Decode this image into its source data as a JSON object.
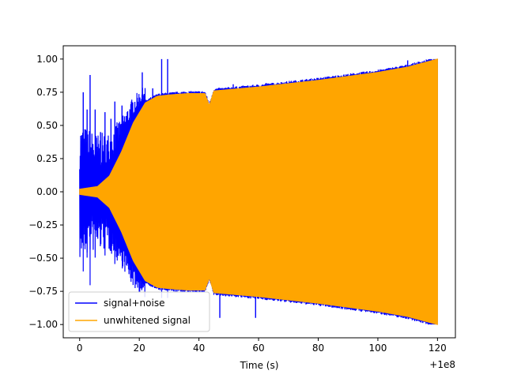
{
  "chart_data": {
    "type": "line",
    "title": "",
    "xlabel": "Time (s)",
    "ylabel": "",
    "x_offset_label": "+1e8",
    "xlim": [
      -5.5,
      126
    ],
    "ylim": [
      -1.1,
      1.1
    ],
    "x_ticks": [
      0,
      20,
      40,
      60,
      80,
      100,
      120
    ],
    "y_ticks": [
      -1.0,
      -0.75,
      -0.5,
      -0.25,
      0.0,
      0.25,
      0.5,
      0.75,
      1.0
    ],
    "x_tick_labels": [
      "0",
      "20",
      "40",
      "60",
      "80",
      "100",
      "120"
    ],
    "y_tick_labels": [
      "−1.00",
      "−0.75",
      "−0.50",
      "−0.25",
      "0.00",
      "0.25",
      "0.50",
      "0.75",
      "1.00"
    ],
    "grid": false,
    "legend_position": "lower-left",
    "series": [
      {
        "name": "signal+noise",
        "color": "#0000ff",
        "x_range": [
          0,
          120
        ],
        "description_points": {
          "spike_times": [
            1.2,
            2.5,
            3.5,
            5.2,
            7.0,
            8.5,
            10.5,
            11.8,
            14.2,
            15.5,
            21.0,
            24.5,
            27.5,
            29.5,
            47.0,
            51.5,
            59.0,
            62.5,
            66.5,
            87.0,
            110.0
          ],
          "spike_values": [
            0.75,
            0.62,
            0.88,
            0.62,
            0.45,
            0.6,
            0.55,
            0.68,
            0.65,
            0.45,
            0.9,
            0.78,
            1.0,
            1.0,
            -0.95,
            0.81,
            -0.95,
            0.82,
            0.77,
            -0.85,
            0.99
          ]
        }
      },
      {
        "name": "unwhitened signal",
        "color": "#ffa500",
        "x_range": [
          0,
          120
        ],
        "envelope": {
          "t": [
            0,
            6,
            10,
            14,
            18,
            22,
            26,
            30,
            36,
            42,
            43.5,
            45,
            60,
            80,
            100,
            110,
            120
          ],
          "amplitude": [
            0.02,
            0.04,
            0.12,
            0.3,
            0.52,
            0.67,
            0.72,
            0.73,
            0.74,
            0.74,
            0.65,
            0.76,
            0.79,
            0.84,
            0.9,
            0.94,
            1.0
          ]
        }
      }
    ]
  }
}
